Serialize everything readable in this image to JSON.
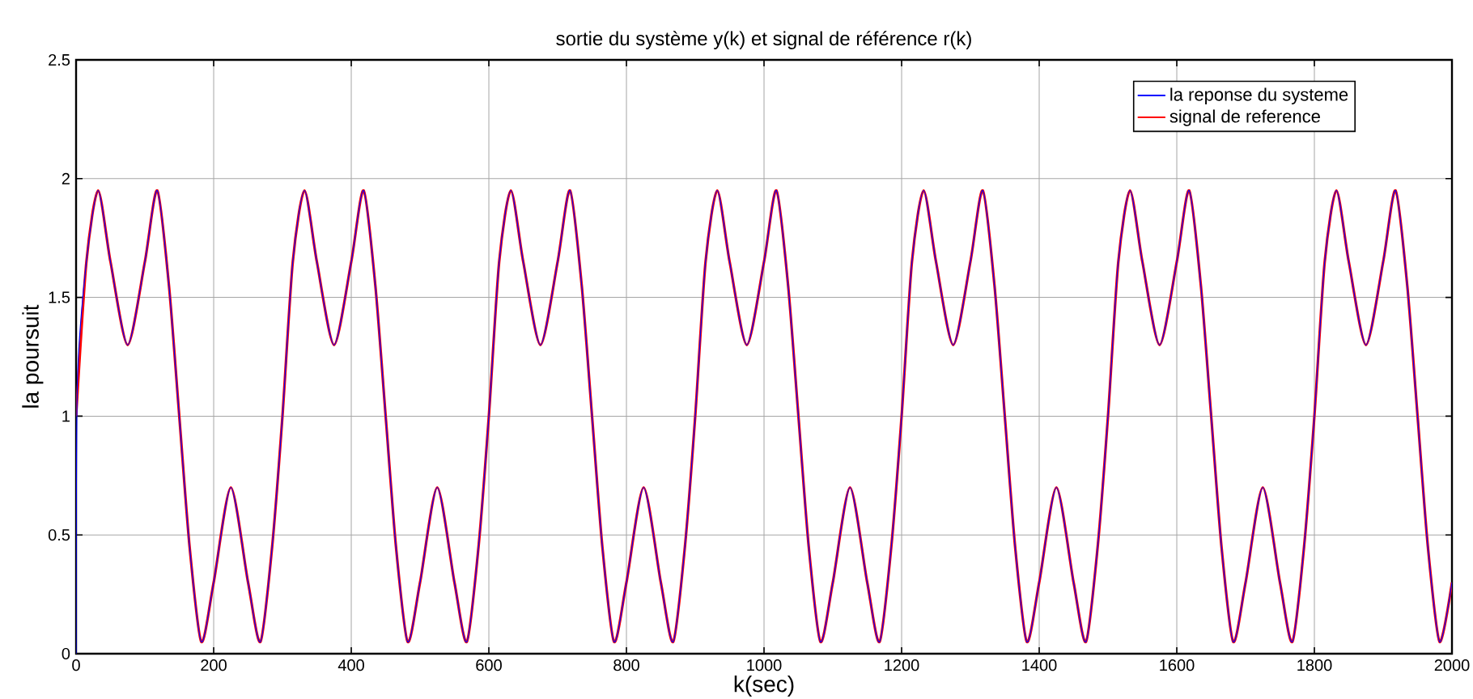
{
  "chart_data": {
    "type": "line",
    "title": "sortie du système y(k) et signal de référence r(k)",
    "xlabel": "k(sec)",
    "ylabel": "la poursuit",
    "xlim": [
      0,
      2000
    ],
    "ylim": [
      0,
      2.5
    ],
    "xticks": [
      0,
      200,
      400,
      600,
      800,
      1000,
      1200,
      1400,
      1600,
      1800,
      2000
    ],
    "yticks": [
      0,
      0.5,
      1,
      1.5,
      2,
      2.5
    ],
    "grid": true,
    "legend": "top right",
    "series": [
      {
        "name": "la reponse du systeme",
        "color": "#0000ff",
        "x": [
          0,
          2,
          15,
          32,
          50,
          75,
          100,
          118,
          135,
          150,
          165,
          182,
          200,
          225,
          250,
          268,
          285,
          300,
          315,
          332,
          350,
          375,
          400,
          418,
          435,
          450,
          465,
          482,
          500,
          525,
          550,
          568,
          585,
          600,
          615,
          632,
          650,
          675,
          700,
          718,
          735,
          750,
          765,
          782,
          800,
          825,
          850,
          868,
          885,
          900,
          915,
          932,
          950,
          975,
          1000,
          1018,
          1035,
          1050,
          1065,
          1082,
          1100,
          1125,
          1150,
          1168,
          1185,
          1200,
          1215,
          1232,
          1250,
          1275,
          1300,
          1318,
          1335,
          1350,
          1365,
          1382,
          1400,
          1425,
          1450,
          1468,
          1485,
          1500,
          1515,
          1532,
          1550,
          1575,
          1600,
          1618,
          1635,
          1650,
          1665,
          1682,
          1700,
          1725,
          1750,
          1768,
          1785,
          1800,
          1815,
          1832,
          1850,
          1875,
          1900,
          1918,
          1935,
          1950,
          1965,
          1982,
          2000
        ],
        "values": [
          0,
          1.15,
          1.65,
          1.95,
          1.65,
          1.3,
          1.65,
          1.95,
          1.55,
          1.0,
          0.45,
          0.05,
          0.3,
          0.7,
          0.3,
          0.05,
          0.45,
          1.0,
          1.65,
          1.95,
          1.65,
          1.3,
          1.65,
          1.95,
          1.55,
          1.0,
          0.45,
          0.05,
          0.3,
          0.7,
          0.3,
          0.05,
          0.45,
          1.0,
          1.65,
          1.95,
          1.65,
          1.3,
          1.65,
          1.95,
          1.55,
          1.0,
          0.45,
          0.05,
          0.3,
          0.7,
          0.3,
          0.05,
          0.45,
          1.0,
          1.65,
          1.95,
          1.65,
          1.3,
          1.65,
          1.95,
          1.55,
          1.0,
          0.45,
          0.05,
          0.3,
          0.7,
          0.3,
          0.05,
          0.45,
          1.0,
          1.65,
          1.95,
          1.65,
          1.3,
          1.65,
          1.95,
          1.55,
          1.0,
          0.45,
          0.05,
          0.3,
          0.7,
          0.3,
          0.05,
          0.45,
          1.0,
          1.65,
          1.95,
          1.65,
          1.3,
          1.65,
          1.95,
          1.55,
          1.0,
          0.45,
          0.05,
          0.3,
          0.7,
          0.3,
          0.05,
          0.45,
          1.0,
          1.65,
          1.95,
          1.65,
          1.3,
          1.65,
          1.95,
          1.55,
          1.0,
          0.45,
          0.05,
          0.3
        ]
      },
      {
        "name": "signal de reference",
        "color": "#ff0000",
        "x": [
          0,
          15,
          32,
          50,
          75,
          100,
          118,
          135,
          150,
          165,
          182,
          200,
          225,
          250,
          268,
          285,
          300,
          315,
          332,
          350,
          375,
          400,
          418,
          435,
          450,
          465,
          482,
          500,
          525,
          550,
          568,
          585,
          600,
          615,
          632,
          650,
          675,
          700,
          718,
          735,
          750,
          765,
          782,
          800,
          825,
          850,
          868,
          885,
          900,
          915,
          932,
          950,
          975,
          1000,
          1018,
          1035,
          1050,
          1065,
          1082,
          1100,
          1125,
          1150,
          1168,
          1185,
          1200,
          1215,
          1232,
          1250,
          1275,
          1300,
          1318,
          1335,
          1350,
          1365,
          1382,
          1400,
          1425,
          1450,
          1468,
          1485,
          1500,
          1515,
          1532,
          1550,
          1575,
          1600,
          1618,
          1635,
          1650,
          1665,
          1682,
          1700,
          1725,
          1750,
          1768,
          1785,
          1800,
          1815,
          1832,
          1850,
          1875,
          1900,
          1918,
          1935,
          1950,
          1965,
          1982,
          2000
        ],
        "values": [
          1.0,
          1.65,
          1.95,
          1.65,
          1.3,
          1.65,
          1.95,
          1.55,
          1.0,
          0.45,
          0.05,
          0.3,
          0.7,
          0.3,
          0.05,
          0.45,
          1.0,
          1.65,
          1.95,
          1.65,
          1.3,
          1.65,
          1.95,
          1.55,
          1.0,
          0.45,
          0.05,
          0.3,
          0.7,
          0.3,
          0.05,
          0.45,
          1.0,
          1.65,
          1.95,
          1.65,
          1.3,
          1.65,
          1.95,
          1.55,
          1.0,
          0.45,
          0.05,
          0.3,
          0.7,
          0.3,
          0.05,
          0.45,
          1.0,
          1.65,
          1.95,
          1.65,
          1.3,
          1.65,
          1.95,
          1.55,
          1.0,
          0.45,
          0.05,
          0.3,
          0.7,
          0.3,
          0.05,
          0.45,
          1.0,
          1.65,
          1.95,
          1.65,
          1.3,
          1.65,
          1.95,
          1.55,
          1.0,
          0.45,
          0.05,
          0.3,
          0.7,
          0.3,
          0.05,
          0.45,
          1.0,
          1.65,
          1.95,
          1.65,
          1.3,
          1.65,
          1.95,
          1.55,
          1.0,
          0.45,
          0.05,
          0.3,
          0.7,
          0.3,
          0.05,
          0.45,
          1.0,
          1.65,
          1.95,
          1.65,
          1.3,
          1.65,
          1.95,
          1.55,
          1.0,
          0.45,
          0.05,
          0.3
        ]
      }
    ]
  }
}
